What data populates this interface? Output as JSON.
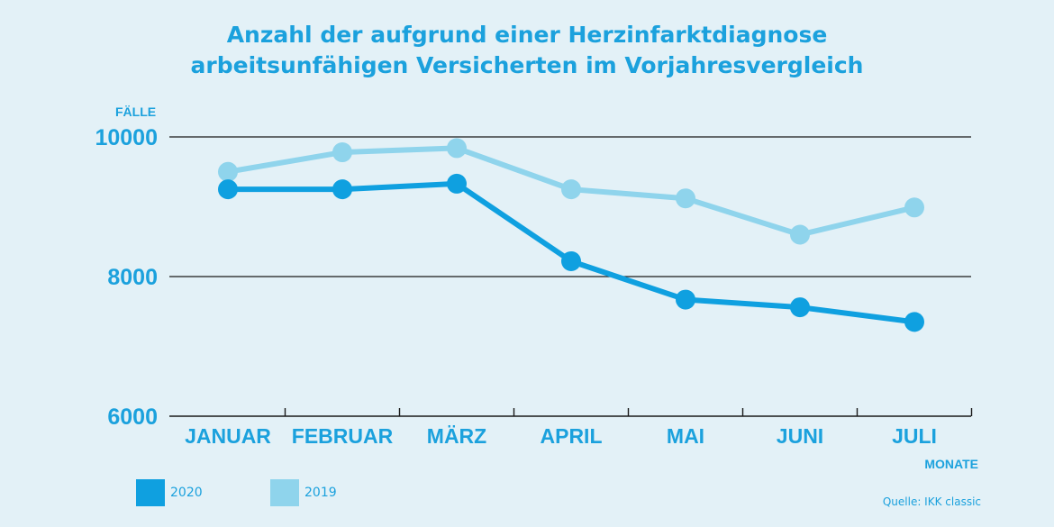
{
  "title_line1": "Anzahl der aufgrund einer Herzinfarktdiagnose",
  "title_line2": "arbeitsunfähigen Versicherten im Vorjahresvergleich",
  "source": "Quelle: IKK classic",
  "chart_data": {
    "type": "line",
    "title": "Anzahl der aufgrund einer Herzinfarktdiagnose arbeitsunfähigen Versicherten im Vorjahresvergleich",
    "xlabel": "MONATE",
    "ylabel": "FÄLLE",
    "categories": [
      "JANUAR",
      "FEBRUAR",
      "MÄRZ",
      "APRIL",
      "MAI",
      "JUNI",
      "JULI"
    ],
    "ylim": [
      6000,
      10000
    ],
    "yticks": [
      6000,
      8000,
      10000
    ],
    "grid": true,
    "legend_position": "bottom-left",
    "series": [
      {
        "name": "2020",
        "color": "#0fa0e0",
        "values": [
          9250,
          9250,
          9330,
          8220,
          7670,
          7560,
          7350
        ]
      },
      {
        "name": "2019",
        "color": "#8fd4ec",
        "values": [
          9500,
          9780,
          9840,
          9250,
          9120,
          8600,
          8990
        ]
      }
    ]
  }
}
